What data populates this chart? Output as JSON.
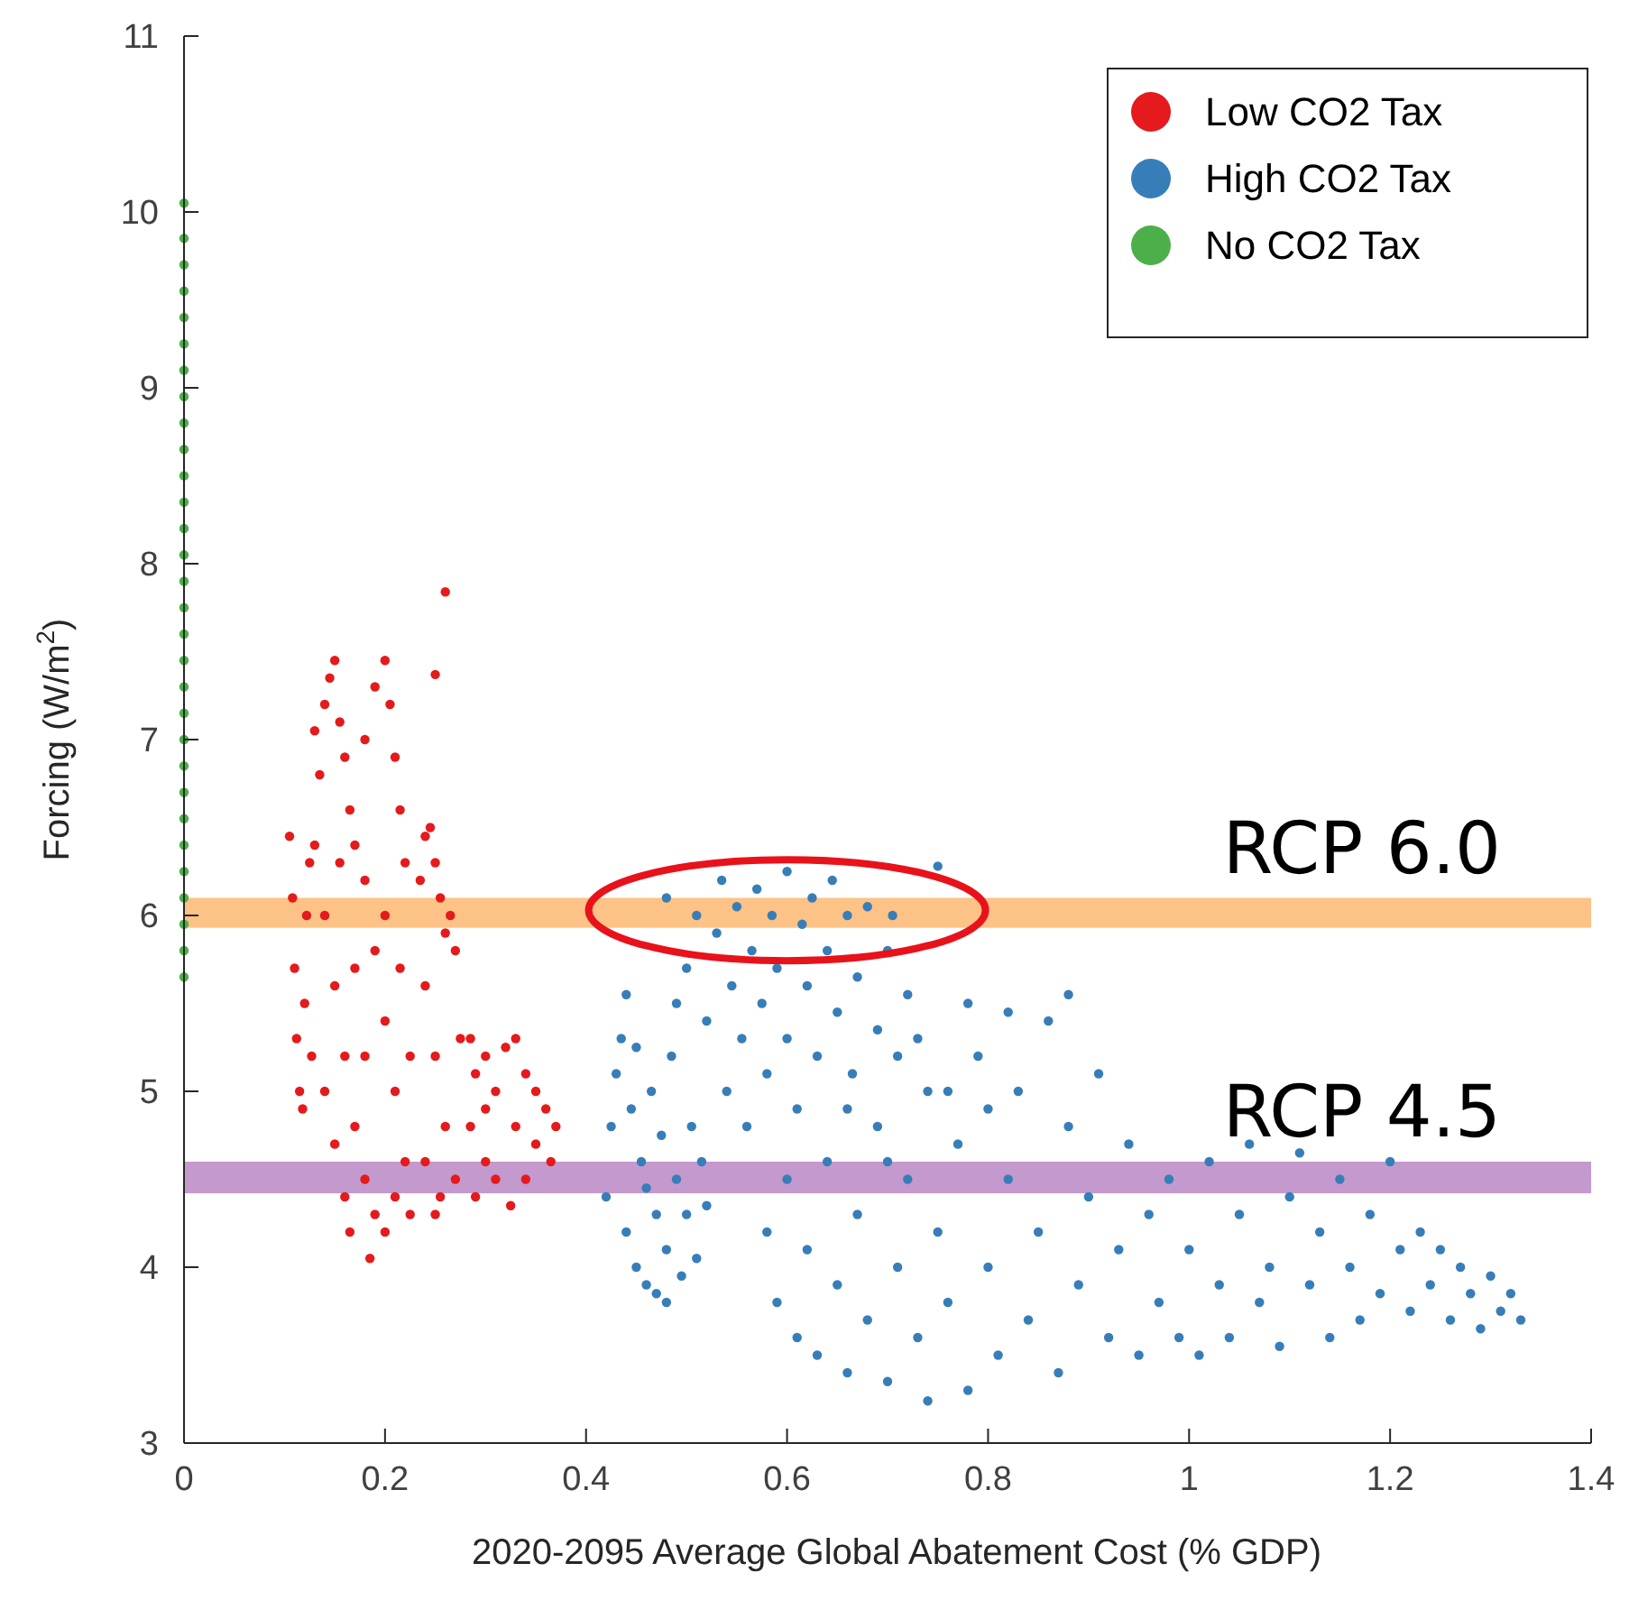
{
  "chart_data": {
    "type": "scatter",
    "xlabel": "2020-2095 Average Global Abatement Cost (% GDP)",
    "ylabel": "Forcing (W/m$^{2}$)",
    "xlim": [
      0,
      1.4
    ],
    "xticks": [
      0,
      0.2,
      0.4,
      0.6,
      0.8,
      1,
      1.2,
      1.4
    ],
    "ylim": [
      3,
      11
    ],
    "yticks": [
      3,
      4,
      5,
      6,
      7,
      8,
      9,
      10,
      11
    ],
    "legend": "top right",
    "marker": "circle",
    "bands": [
      {
        "axis": "y",
        "from": 5.93,
        "to": 6.1,
        "label": "RCP 6.0",
        "color": "#fdb366"
      },
      {
        "axis": "y",
        "from": 4.42,
        "to": 4.6,
        "label": "RCP 4.5",
        "color": "#b57fc1"
      }
    ],
    "series": [
      {
        "name": "Low CO2 Tax",
        "color": "#e41a1c",
        "x": [
          0.105,
          0.108,
          0.11,
          0.112,
          0.115,
          0.118,
          0.12,
          0.122,
          0.125,
          0.127,
          0.13,
          0.135,
          0.14,
          0.145,
          0.15,
          0.155,
          0.16,
          0.165,
          0.17,
          0.13,
          0.14,
          0.15,
          0.16,
          0.14,
          0.15,
          0.16,
          0.165,
          0.17,
          0.17,
          0.155,
          0.18,
          0.19,
          0.2,
          0.205,
          0.21,
          0.215,
          0.22,
          0.18,
          0.19,
          0.2,
          0.21,
          0.22,
          0.18,
          0.185,
          0.19,
          0.2,
          0.21,
          0.18,
          0.2,
          0.215,
          0.225,
          0.225,
          0.235,
          0.24,
          0.245,
          0.25,
          0.255,
          0.26,
          0.265,
          0.27,
          0.24,
          0.25,
          0.26,
          0.27,
          0.24,
          0.25,
          0.255,
          0.275,
          0.285,
          0.29,
          0.3,
          0.31,
          0.32,
          0.33,
          0.34,
          0.35,
          0.36,
          0.37,
          0.365,
          0.35,
          0.34,
          0.325,
          0.31,
          0.3,
          0.29,
          0.285,
          0.33,
          0.3,
          0.25,
          0.26
        ],
        "values": [
          6.45,
          6.1,
          5.7,
          5.3,
          5.0,
          4.9,
          5.5,
          6.0,
          6.3,
          5.2,
          7.05,
          6.8,
          7.2,
          7.35,
          7.45,
          7.1,
          6.9,
          6.6,
          6.4,
          6.4,
          6.0,
          5.6,
          5.2,
          5.0,
          4.7,
          4.4,
          4.2,
          4.8,
          5.7,
          6.3,
          7.0,
          7.3,
          7.45,
          7.2,
          6.9,
          6.6,
          6.3,
          6.2,
          5.8,
          5.4,
          5.0,
          4.6,
          4.5,
          4.05,
          4.3,
          4.2,
          4.4,
          5.2,
          6.0,
          5.7,
          5.2,
          4.3,
          6.2,
          6.45,
          6.5,
          6.3,
          6.1,
          5.9,
          6.0,
          5.8,
          5.6,
          5.2,
          4.8,
          4.5,
          4.6,
          4.3,
          4.4,
          5.3,
          5.3,
          5.1,
          5.2,
          5.0,
          5.25,
          5.3,
          5.1,
          5.0,
          4.9,
          4.8,
          4.6,
          4.7,
          4.5,
          4.35,
          4.5,
          4.6,
          4.4,
          4.8,
          4.8,
          4.9,
          7.37,
          7.84
        ]
      },
      {
        "name": "High CO2 Tax",
        "color": "#377eb8",
        "x": [
          0.42,
          0.425,
          0.43,
          0.435,
          0.44,
          0.44,
          0.445,
          0.45,
          0.45,
          0.455,
          0.46,
          0.46,
          0.465,
          0.47,
          0.47,
          0.475,
          0.48,
          0.48,
          0.485,
          0.49,
          0.495,
          0.5,
          0.505,
          0.51,
          0.515,
          0.52,
          0.5,
          0.51,
          0.52,
          0.53,
          0.535,
          0.54,
          0.545,
          0.55,
          0.555,
          0.56,
          0.565,
          0.57,
          0.575,
          0.58,
          0.585,
          0.59,
          0.6,
          0.6,
          0.61,
          0.615,
          0.62,
          0.625,
          0.63,
          0.64,
          0.645,
          0.65,
          0.66,
          0.665,
          0.67,
          0.68,
          0.69,
          0.7,
          0.705,
          0.71,
          0.72,
          0.73,
          0.74,
          0.75,
          0.48,
          0.49,
          0.58,
          0.59,
          0.6,
          0.61,
          0.62,
          0.63,
          0.64,
          0.65,
          0.66,
          0.67,
          0.68,
          0.69,
          0.7,
          0.71,
          0.72,
          0.73,
          0.74,
          0.75,
          0.76,
          0.77,
          0.78,
          0.79,
          0.8,
          0.81,
          0.82,
          0.83,
          0.84,
          0.85,
          0.86,
          0.87,
          0.88,
          0.89,
          0.9,
          0.91,
          0.92,
          0.93,
          0.94,
          0.95,
          0.96,
          0.97,
          0.78,
          0.82,
          0.88,
          0.76,
          0.7,
          0.66,
          0.8,
          0.98,
          0.99,
          1.0,
          1.01,
          1.02,
          1.03,
          1.04,
          1.05,
          1.06,
          1.07,
          1.08,
          1.09,
          1.1,
          1.11,
          1.12,
          1.13,
          1.14,
          1.15,
          1.16,
          1.17,
          1.18,
          1.19,
          1.2,
          1.21,
          1.22,
          1.23,
          1.24,
          1.25,
          1.26,
          1.27,
          1.28,
          1.29,
          1.3,
          1.31,
          1.32,
          1.33
        ],
        "values": [
          4.4,
          4.8,
          5.1,
          5.3,
          5.55,
          4.2,
          4.9,
          4.0,
          5.25,
          4.6,
          3.9,
          4.45,
          5.0,
          3.85,
          4.3,
          4.75,
          3.8,
          4.1,
          5.2,
          4.5,
          3.95,
          4.3,
          4.8,
          4.05,
          4.6,
          4.35,
          5.7,
          6.0,
          5.4,
          5.9,
          6.2,
          5.0,
          5.6,
          6.05,
          5.3,
          4.8,
          5.8,
          6.15,
          5.5,
          5.1,
          6.0,
          5.7,
          6.25,
          5.3,
          4.9,
          5.95,
          5.6,
          6.1,
          5.2,
          5.8,
          6.2,
          5.45,
          6.0,
          5.1,
          5.65,
          6.05,
          5.35,
          5.8,
          6.0,
          5.2,
          5.55,
          5.3,
          5.0,
          6.28,
          6.1,
          5.5,
          4.2,
          3.8,
          4.5,
          3.6,
          4.1,
          3.5,
          4.6,
          3.9,
          3.4,
          4.3,
          3.7,
          4.8,
          3.35,
          4.0,
          4.5,
          3.6,
          3.24,
          4.2,
          3.8,
          4.7,
          3.3,
          5.2,
          4.0,
          3.5,
          4.5,
          5.0,
          3.7,
          4.2,
          5.4,
          3.4,
          4.8,
          3.9,
          4.4,
          5.1,
          3.6,
          4.1,
          4.7,
          3.5,
          4.3,
          3.8,
          5.5,
          5.45,
          5.55,
          5.0,
          4.6,
          4.9,
          4.9,
          4.5,
          3.6,
          4.1,
          3.5,
          4.6,
          3.9,
          3.6,
          4.3,
          4.7,
          3.8,
          4.0,
          3.55,
          4.4,
          4.65,
          3.9,
          4.2,
          3.6,
          4.5,
          4.0,
          3.7,
          4.3,
          3.85,
          4.6,
          4.1,
          3.75,
          4.2,
          3.9,
          4.1,
          3.7,
          4.0,
          3.85,
          3.65,
          3.95,
          3.75,
          3.85,
          3.7
        ]
      },
      {
        "name": "No CO2 Tax",
        "color": "#4daf4a",
        "x": [
          0,
          0,
          0,
          0,
          0,
          0,
          0,
          0,
          0,
          0,
          0,
          0,
          0,
          0,
          0,
          0,
          0,
          0,
          0,
          0,
          0,
          0,
          0,
          0,
          0,
          0,
          0,
          0,
          0,
          0
        ],
        "values": [
          5.65,
          5.8,
          5.95,
          6.1,
          6.25,
          6.4,
          6.55,
          6.7,
          6.85,
          7.0,
          7.15,
          7.3,
          7.45,
          7.6,
          7.75,
          7.9,
          8.05,
          8.2,
          8.35,
          8.5,
          8.65,
          8.8,
          8.95,
          9.1,
          9.25,
          9.4,
          9.55,
          9.7,
          9.85,
          10.05
        ]
      }
    ]
  }
}
